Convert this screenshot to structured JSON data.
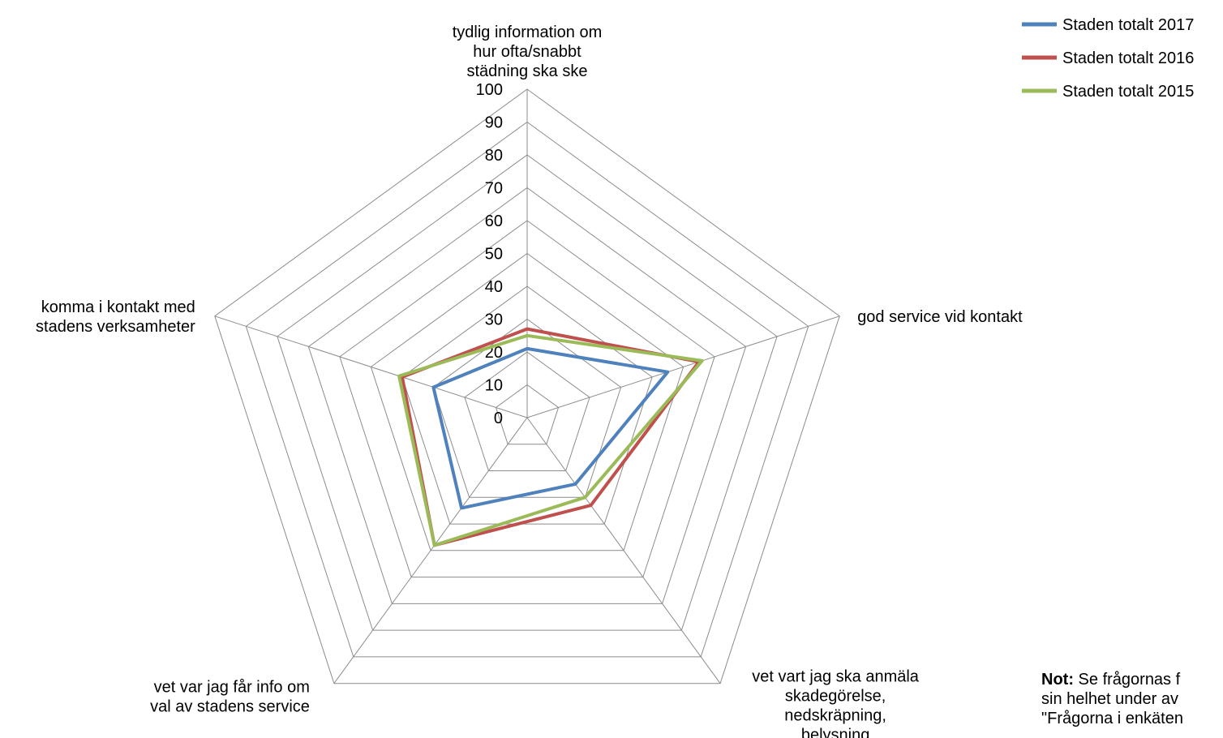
{
  "chart_data": {
    "type": "radar",
    "categories": [
      [
        "tydlig information om",
        "hur ofta/snabbt",
        "städning ska ske"
      ],
      [
        "god service vid kontakt"
      ],
      [
        "vet vart jag ska anmäla",
        "skadegörelse,",
        "nedskräpning,",
        "belysning"
      ],
      [
        "vet var jag får info om",
        "val av stadens service"
      ],
      [
        "komma i kontakt med",
        "stadens verksamheter"
      ]
    ],
    "rmin": 0,
    "rmax": 100,
    "ticks": [
      0,
      10,
      20,
      30,
      40,
      50,
      60,
      70,
      80,
      90,
      100
    ],
    "grid": true,
    "legend_position": "top-right",
    "series": [
      {
        "name": "Staden totalt 2017",
        "color": "#4F81BD",
        "values": [
          21,
          45,
          25,
          34,
          30
        ]
      },
      {
        "name": "Staden totalt 2016",
        "color": "#C0504D",
        "values": [
          27,
          55,
          33,
          48,
          40
        ]
      },
      {
        "name": "Staden totalt 2015",
        "color": "#9BBB59",
        "values": [
          25,
          56,
          30,
          48,
          41
        ]
      }
    ]
  },
  "note": {
    "label": "Not:",
    "lines": [
      "Se frågornas f",
      "sin helhet under av",
      "\"Frågorna i enkäten"
    ]
  }
}
